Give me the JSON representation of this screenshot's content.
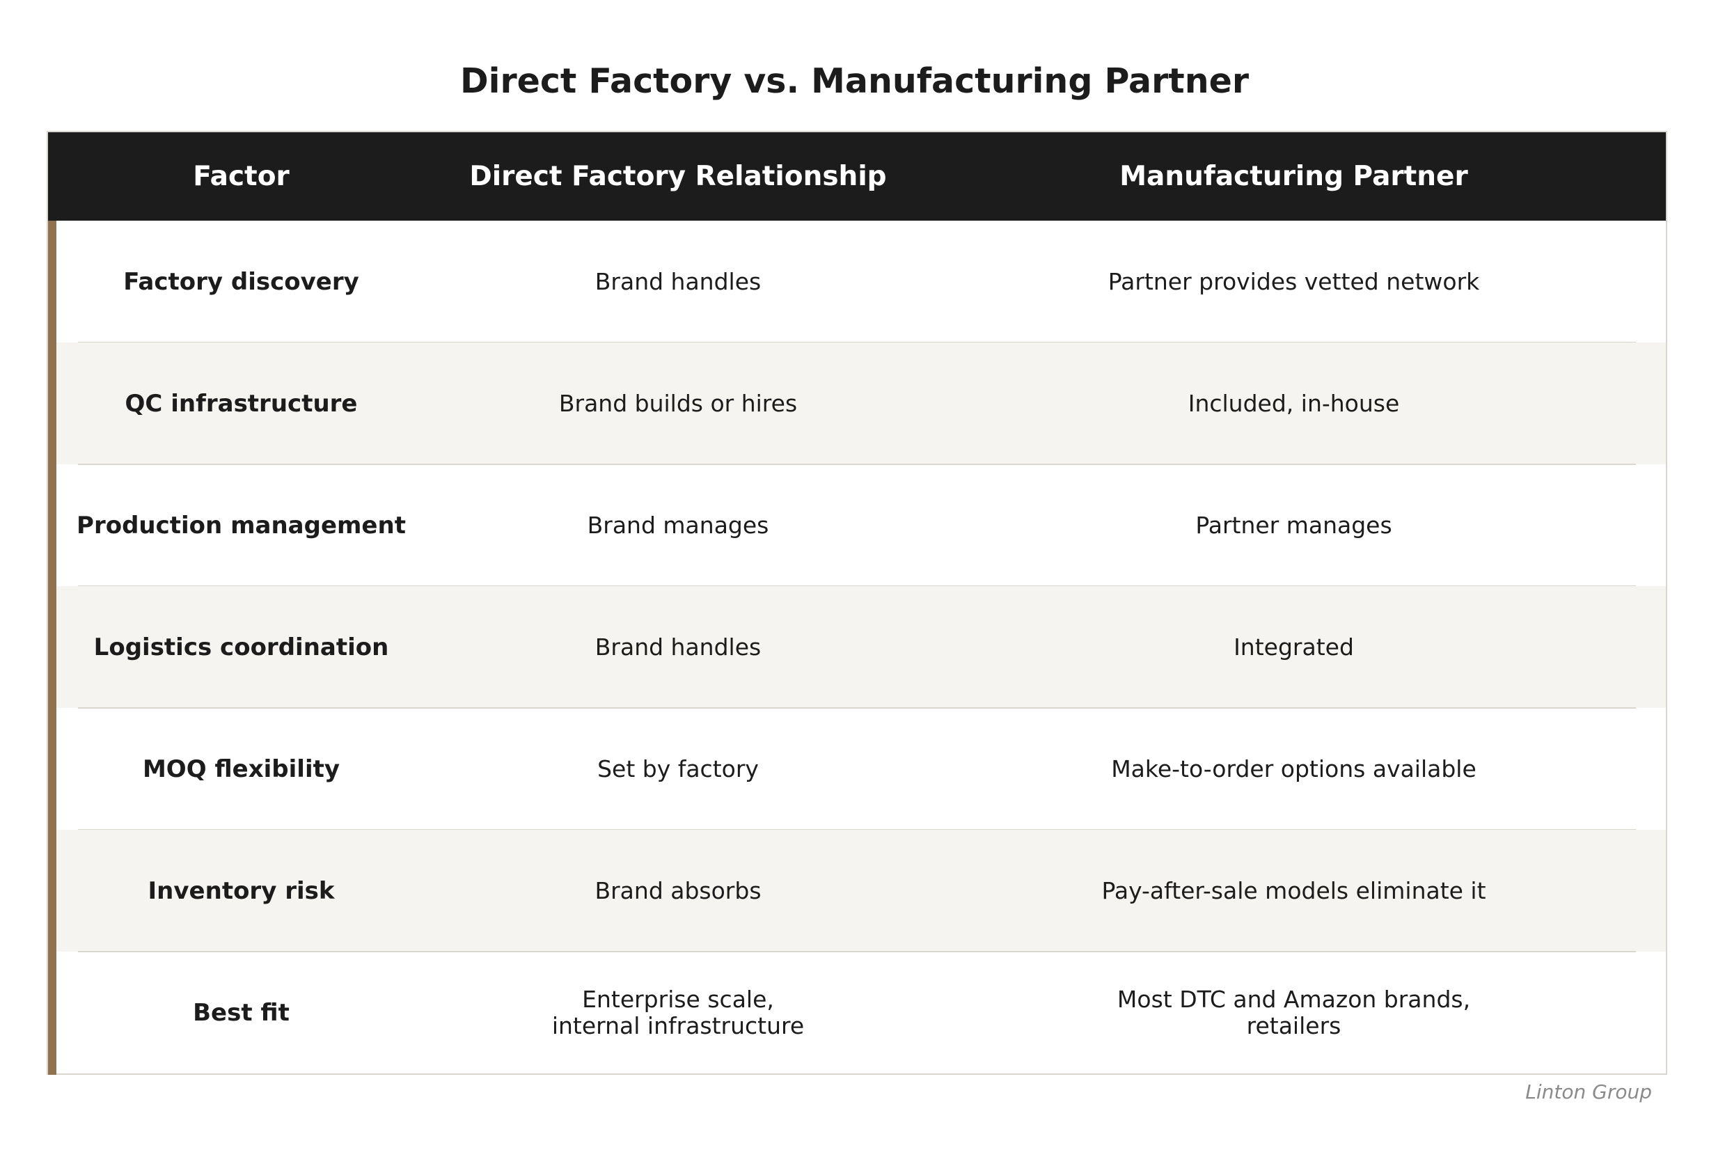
{
  "chart_data": {
    "type": "table",
    "title": "Direct Factory vs. Manufacturing Partner",
    "columns": [
      "Factor",
      "Direct Factory Relationship",
      "Manufacturing Partner"
    ],
    "rows": [
      [
        "Factory discovery",
        "Brand handles",
        "Partner provides vetted network"
      ],
      [
        "QC infrastructure",
        "Brand builds or hires",
        "Included, in-house"
      ],
      [
        "Production management",
        "Brand manages",
        "Partner manages"
      ],
      [
        "Logistics coordination",
        "Brand handles",
        "Integrated"
      ],
      [
        "MOQ flexibility",
        "Set by factory",
        "Make-to-order options available"
      ],
      [
        "Inventory risk",
        "Brand absorbs",
        "Pay-after-sale models eliminate it"
      ],
      [
        "Best fit",
        "Enterprise scale,\ninternal infrastructure",
        "Most DTC and Amazon brands,\nretailers"
      ]
    ],
    "source": "Linton Group"
  },
  "colors": {
    "header_bg": "#1c1c1c",
    "accent": "#8f7350",
    "alt_row": "#f5f4f1"
  }
}
